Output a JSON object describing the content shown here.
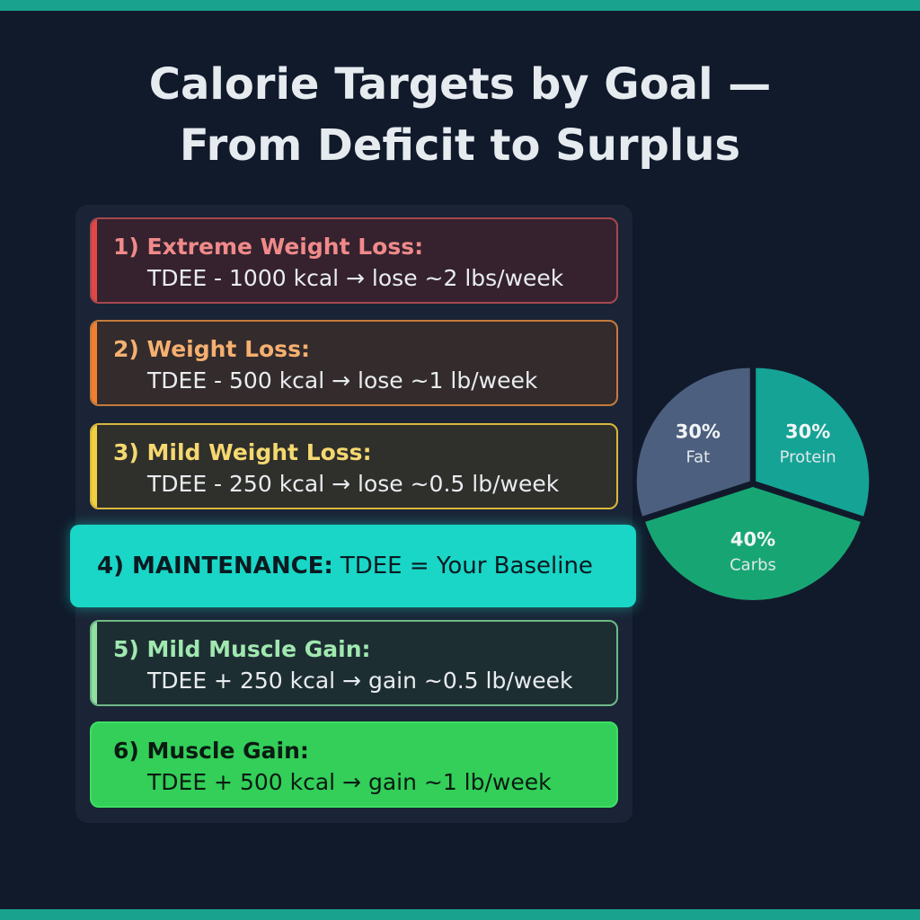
{
  "title": [
    "Calorie Targets by Goal —",
    "From Deficit to Surplus"
  ],
  "goals": [
    {
      "label": "1) Extreme Weight Loss:",
      "detail": "TDEE - 1000 kcal → lose ~2 lbs/week"
    },
    {
      "label": "2) Weight Loss:",
      "detail": "TDEE - 500 kcal → lose ~1 lb/week"
    },
    {
      "label": "3) Mild Weight Loss:",
      "detail": "TDEE - 250 kcal → lose ~0.5 lb/week"
    },
    {
      "label": "4) MAINTENANCE:",
      "detail": "TDEE = Your Baseline"
    },
    {
      "label": "5) Mild Muscle Gain:",
      "detail": "TDEE + 250 kcal → gain ~0.5 lb/week"
    },
    {
      "label": "6) Muscle Gain:",
      "detail": "TDEE + 500 kcal → gain ~1 lb/week"
    }
  ],
  "chart_data": {
    "type": "pie",
    "categories": [
      "Protein",
      "Carbs",
      "Fat"
    ],
    "values": [
      30,
      40,
      30
    ],
    "value_labels": [
      "30%",
      "40%",
      "30%"
    ],
    "colors": [
      "#15a395",
      "#17a673",
      "#4d5f7e"
    ]
  }
}
